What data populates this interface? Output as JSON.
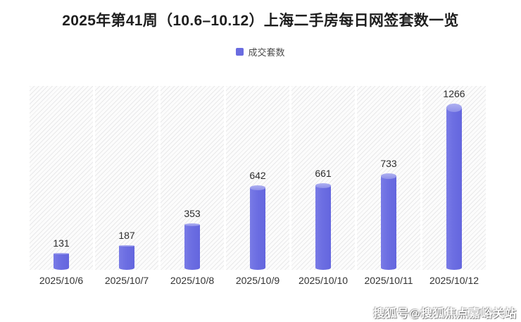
{
  "legend": {
    "swatch_color": "#6a6ce0"
  },
  "watermark": {
    "text": "搜狐号@搜狐焦点嘉峪关站"
  },
  "chart_data": {
    "type": "bar",
    "title": "2025年第41周（10.6–10.12）上海二手房每日网签套数一览",
    "categories": [
      "2025/10/6",
      "2025/10/7",
      "2025/10/8",
      "2025/10/9",
      "2025/10/10",
      "2025/10/11",
      "2025/10/12"
    ],
    "series": [
      {
        "name": "成交套数",
        "values": [
          131,
          187,
          353,
          642,
          661,
          733,
          1266
        ]
      }
    ],
    "xlabel": "",
    "ylabel": "",
    "ylim": [
      0,
      1400
    ],
    "grid": "no y-axis, no gridlines; hatched background panels per category separated by thin white gaps",
    "legend_position": "top-center",
    "value_labels": true,
    "bar_style": "cylinder with lighter elliptical top cap",
    "bar_color": "#6c6ee2",
    "bar_cap_color": "#9ea0ec"
  }
}
